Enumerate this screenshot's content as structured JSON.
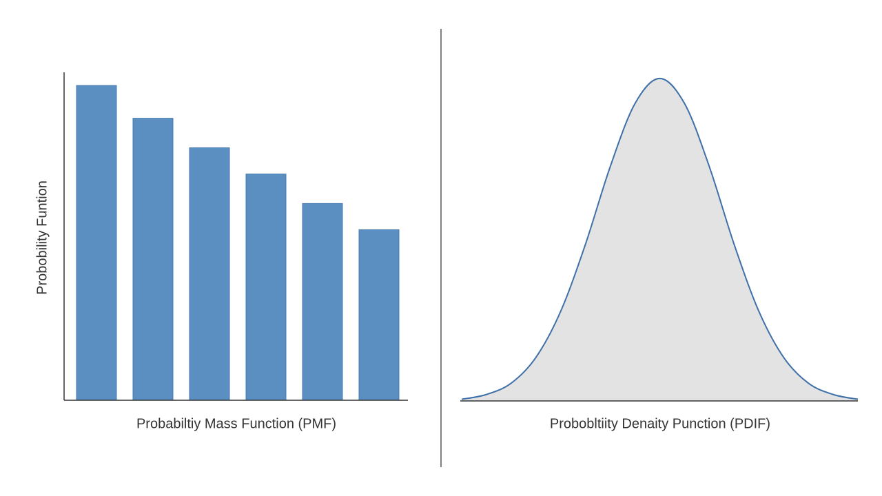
{
  "chart_data": [
    {
      "type": "bar",
      "axis_label": "Probobility Funtion",
      "xlabel": "Probabiltiy Mass Function (PMF)",
      "categories": [
        null,
        null,
        null,
        null,
        null,
        null
      ],
      "values": [
        0.96,
        0.86,
        0.77,
        0.69,
        0.6,
        0.52
      ],
      "color": "#5b8fc2",
      "ylim": [
        0,
        1
      ]
    },
    {
      "type": "area",
      "xlabel": "Probobltiity Denaity Punction (PDIF)",
      "x": [
        -3.2,
        -2.8,
        -2.4,
        -2.0,
        -1.6,
        -1.2,
        -0.8,
        -0.4,
        0,
        0.4,
        0.8,
        1.2,
        1.6,
        2.0,
        2.4,
        2.8,
        3.2
      ],
      "values": [
        0.002,
        0.008,
        0.022,
        0.054,
        0.111,
        0.194,
        0.29,
        0.368,
        0.399,
        0.368,
        0.29,
        0.194,
        0.111,
        0.054,
        0.022,
        0.008,
        0.002
      ],
      "color": "#3d6fa8",
      "fill": "#e3e3e3",
      "xlim": [
        -3.2,
        3.2
      ],
      "ylim": [
        0,
        0.41
      ]
    }
  ]
}
